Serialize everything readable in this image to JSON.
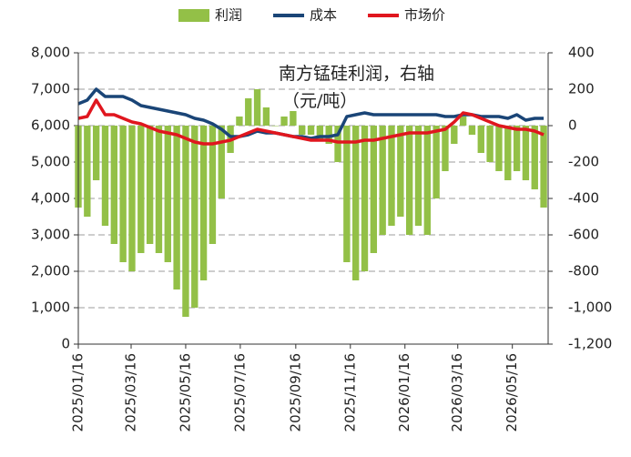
{
  "chart_data": {
    "type": "bar_line_dual",
    "annotation_lines": [
      "南方锰硅利润，右轴",
      "（元/吨）"
    ],
    "x": [
      "2025/01/16",
      "2025/01/26",
      "2025/02/05",
      "2025/02/15",
      "2025/02/25",
      "2025/03/07",
      "2025/03/17",
      "2025/03/27",
      "2025/04/06",
      "2025/04/16",
      "2025/04/26",
      "2025/05/06",
      "2025/05/16",
      "2025/05/26",
      "2025/06/05",
      "2025/06/15",
      "2025/06/25",
      "2025/07/05",
      "2025/07/15",
      "2025/07/25",
      "2025/08/04",
      "2025/08/14",
      "2025/08/24",
      "2025/09/03",
      "2025/09/13",
      "2025/09/23",
      "2025/10/03",
      "2025/10/13",
      "2025/10/23",
      "2025/11/02",
      "2025/11/12",
      "2025/11/22",
      "2025/12/02",
      "2025/12/12",
      "2025/12/22",
      "2026/01/01",
      "2026/01/11",
      "2026/01/21",
      "2026/01/31",
      "2026/02/10",
      "2026/02/20",
      "2026/03/02",
      "2026/03/12",
      "2026/03/22",
      "2026/04/01",
      "2026/04/11",
      "2026/04/21",
      "2026/05/01",
      "2026/05/11",
      "2026/05/21",
      "2026/05/31",
      "2026/06/10",
      "2026/06/20"
    ],
    "xlim": [
      "2025/01/16",
      "2026/06/25"
    ],
    "xticks": [
      "2025/01/16",
      "2025/03/16",
      "2025/05/16",
      "2025/07/16",
      "2025/09/16",
      "2025/11/16",
      "2026/01/16",
      "2026/03/16",
      "2026/05/16"
    ],
    "series": [
      {
        "name": "利润",
        "kind": "bar",
        "axis": "y2",
        "color": "#93c047",
        "values": [
          -450,
          -500,
          -300,
          -550,
          -650,
          -750,
          -800,
          -700,
          -650,
          -700,
          -750,
          -900,
          -1050,
          -1000,
          -850,
          -650,
          -400,
          -150,
          50,
          150,
          200,
          100,
          0,
          50,
          80,
          -50,
          -50,
          -80,
          -100,
          -200,
          -750,
          -850,
          -800,
          -700,
          -600,
          -550,
          -500,
          -600,
          -550,
          -600,
          -400,
          -250,
          -100,
          50,
          -50,
          -150,
          -200,
          -250,
          -300,
          -250,
          -300,
          -350,
          -450
        ]
      },
      {
        "name": "成本",
        "kind": "line",
        "axis": "y",
        "color": "#1a4577",
        "values": [
          6600,
          6700,
          7000,
          6800,
          6800,
          6800,
          6700,
          6550,
          6500,
          6450,
          6400,
          6350,
          6300,
          6200,
          6150,
          6050,
          5900,
          5700,
          5700,
          5750,
          5850,
          5800,
          5800,
          5750,
          5700,
          5700,
          5650,
          5700,
          5700,
          5750,
          6250,
          6300,
          6350,
          6300,
          6300,
          6300,
          6300,
          6300,
          6300,
          6300,
          6300,
          6250,
          6250,
          6300,
          6300,
          6250,
          6250,
          6250,
          6200,
          6300,
          6150,
          6200,
          6200
        ]
      },
      {
        "name": "市场价",
        "kind": "line",
        "axis": "y",
        "color": "#e0161e",
        "values": [
          6200,
          6250,
          6700,
          6300,
          6300,
          6200,
          6100,
          6050,
          5950,
          5850,
          5800,
          5750,
          5650,
          5550,
          5500,
          5500,
          5550,
          5600,
          5700,
          5800,
          5900,
          5850,
          5800,
          5750,
          5700,
          5650,
          5600,
          5600,
          5600,
          5550,
          5550,
          5550,
          5600,
          5600,
          5650,
          5700,
          5750,
          5800,
          5800,
          5800,
          5850,
          5900,
          6100,
          6350,
          6300,
          6200,
          6100,
          6000,
          5950,
          5900,
          5900,
          5850,
          5750
        ]
      }
    ],
    "ylim": [
      0,
      8000
    ],
    "yticks": [
      0,
      {
        "value": 1000,
        "label": "1,000"
      },
      {
        "value": 2000,
        "label": "2,000"
      },
      {
        "value": 3000,
        "label": "3,000"
      },
      {
        "value": 4000,
        "label": "4,000"
      },
      {
        "value": 5000,
        "label": "5,000"
      },
      {
        "value": 6000,
        "label": "6,000"
      },
      {
        "value": 7000,
        "label": "7,000"
      },
      {
        "value": 8000,
        "label": "8,000"
      }
    ],
    "y2lim": [
      -1200,
      400
    ],
    "y2ticks": [
      {
        "value": -1200,
        "label": "-1,200"
      },
      {
        "value": -1000,
        "label": "-1,000"
      },
      -800,
      -600,
      -400,
      -200,
      0,
      200,
      400
    ],
    "grid": true,
    "legend": "top"
  }
}
